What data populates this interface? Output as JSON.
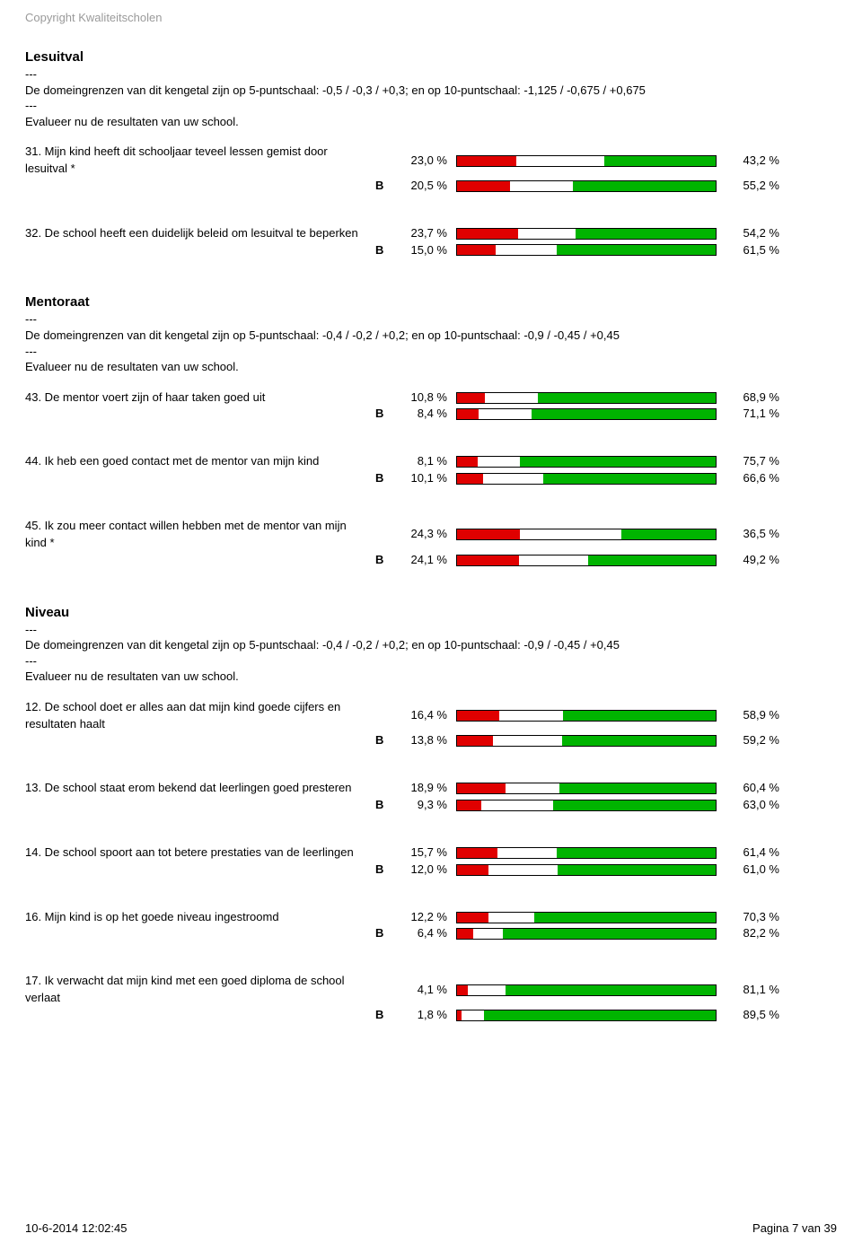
{
  "copyright": "Copyright Kwaliteitscholen",
  "colors": {
    "red": "#e00000",
    "green": "#00b400",
    "white": "#ffffff",
    "border": "#000000",
    "grey": "#9a9a9a"
  },
  "sections": [
    {
      "title": "Lesuitval",
      "desc1": "De domeingrenzen van dit kengetal zijn op 5-puntschaal: -0,5 / -0,3 / +0,3; en op 10-puntschaal: -1,125 / -0,675 / +0,675",
      "desc2": "Evalueer nu de  resultaten van uw school.",
      "questions": [
        {
          "label": "31. Mijn kind heeft dit schooljaar teveel lessen gemist door lesuitval *",
          "rows": [
            {
              "B": "",
              "neg": "23,0 %",
              "pos": "43,2 %",
              "r": 23.0,
              "g": 43.2
            },
            {
              "B": "B",
              "neg": "20,5 %",
              "pos": "55,2 %",
              "r": 20.5,
              "g": 55.2
            }
          ]
        },
        {
          "label": "32. De school heeft een duidelijk beleid om lesuitval te beperken",
          "rows": [
            {
              "B": "",
              "neg": "23,7 %",
              "pos": "54,2 %",
              "r": 23.7,
              "g": 54.2
            },
            {
              "B": "B",
              "neg": "15,0 %",
              "pos": "61,5 %",
              "r": 15.0,
              "g": 61.5
            }
          ]
        }
      ]
    },
    {
      "title": "Mentoraat",
      "desc1": "De domeingrenzen van dit kengetal zijn op 5-puntschaal: -0,4 / -0,2 / +0,2; en op 10-puntschaal: -0,9 / -0,45 / +0,45",
      "desc2": "Evalueer nu de resultaten van uw school.",
      "questions": [
        {
          "label": "43. De mentor voert zijn of haar taken goed uit",
          "rows": [
            {
              "B": "",
              "neg": "10,8 %",
              "pos": "68,9 %",
              "r": 10.8,
              "g": 68.9
            },
            {
              "B": "B",
              "neg": "8,4 %",
              "pos": "71,1 %",
              "r": 8.4,
              "g": 71.1
            }
          ]
        },
        {
          "label": "44. Ik heb een goed contact met de mentor van mijn kind",
          "rows": [
            {
              "B": "",
              "neg": "8,1 %",
              "pos": "75,7 %",
              "r": 8.1,
              "g": 75.7
            },
            {
              "B": "B",
              "neg": "10,1 %",
              "pos": "66,6 %",
              "r": 10.1,
              "g": 66.6
            }
          ]
        },
        {
          "label": "45. Ik zou meer contact willen hebben met de mentor van mijn kind *",
          "rows": [
            {
              "B": "",
              "neg": "24,3 %",
              "pos": "36,5 %",
              "r": 24.3,
              "g": 36.5
            },
            {
              "B": "B",
              "neg": "24,1 %",
              "pos": "49,2 %",
              "r": 24.1,
              "g": 49.2
            }
          ]
        }
      ]
    },
    {
      "title": "Niveau",
      "desc1": "De domeingrenzen van dit kengetal zijn op 5-puntschaal: -0,4 / -0,2 / +0,2; en op 10-puntschaal: -0,9 / -0,45 / +0,45",
      "desc2": "Evalueer nu de resultaten van uw school.",
      "questions": [
        {
          "label": "12. De school doet er alles aan dat mijn kind goede cijfers en resultaten haalt",
          "rows": [
            {
              "B": "",
              "neg": "16,4 %",
              "pos": "58,9 %",
              "r": 16.4,
              "g": 58.9
            },
            {
              "B": "B",
              "neg": "13,8 %",
              "pos": "59,2 %",
              "r": 13.8,
              "g": 59.2
            }
          ]
        },
        {
          "label": "13. De school staat erom bekend dat leerlingen goed presteren",
          "rows": [
            {
              "B": "",
              "neg": "18,9 %",
              "pos": "60,4 %",
              "r": 18.9,
              "g": 60.4
            },
            {
              "B": "B",
              "neg": "9,3 %",
              "pos": "63,0 %",
              "r": 9.3,
              "g": 63.0
            }
          ]
        },
        {
          "label": "14. De school spoort aan tot betere prestaties van de leerlingen",
          "rows": [
            {
              "B": "",
              "neg": "15,7 %",
              "pos": "61,4 %",
              "r": 15.7,
              "g": 61.4
            },
            {
              "B": "B",
              "neg": "12,0 %",
              "pos": "61,0 %",
              "r": 12.0,
              "g": 61.0
            }
          ]
        },
        {
          "label": "16. Mijn kind is op het goede niveau ingestroomd",
          "rows": [
            {
              "B": "",
              "neg": "12,2 %",
              "pos": "70,3 %",
              "r": 12.2,
              "g": 70.3
            },
            {
              "B": "B",
              "neg": "6,4 %",
              "pos": "82,2 %",
              "r": 6.4,
              "g": 82.2
            }
          ]
        },
        {
          "label": "17. Ik verwacht dat mijn kind met een goed diploma de school verlaat",
          "rows": [
            {
              "B": "",
              "neg": "4,1 %",
              "pos": "81,1 %",
              "r": 4.1,
              "g": 81.1
            },
            {
              "B": "B",
              "neg": "1,8 %",
              "pos": "89,5 %",
              "r": 1.8,
              "g": 89.5
            }
          ]
        }
      ]
    }
  ],
  "footer": {
    "timestamp": "10-6-2014 12:02:45",
    "page": "Pagina 7 van 39"
  }
}
